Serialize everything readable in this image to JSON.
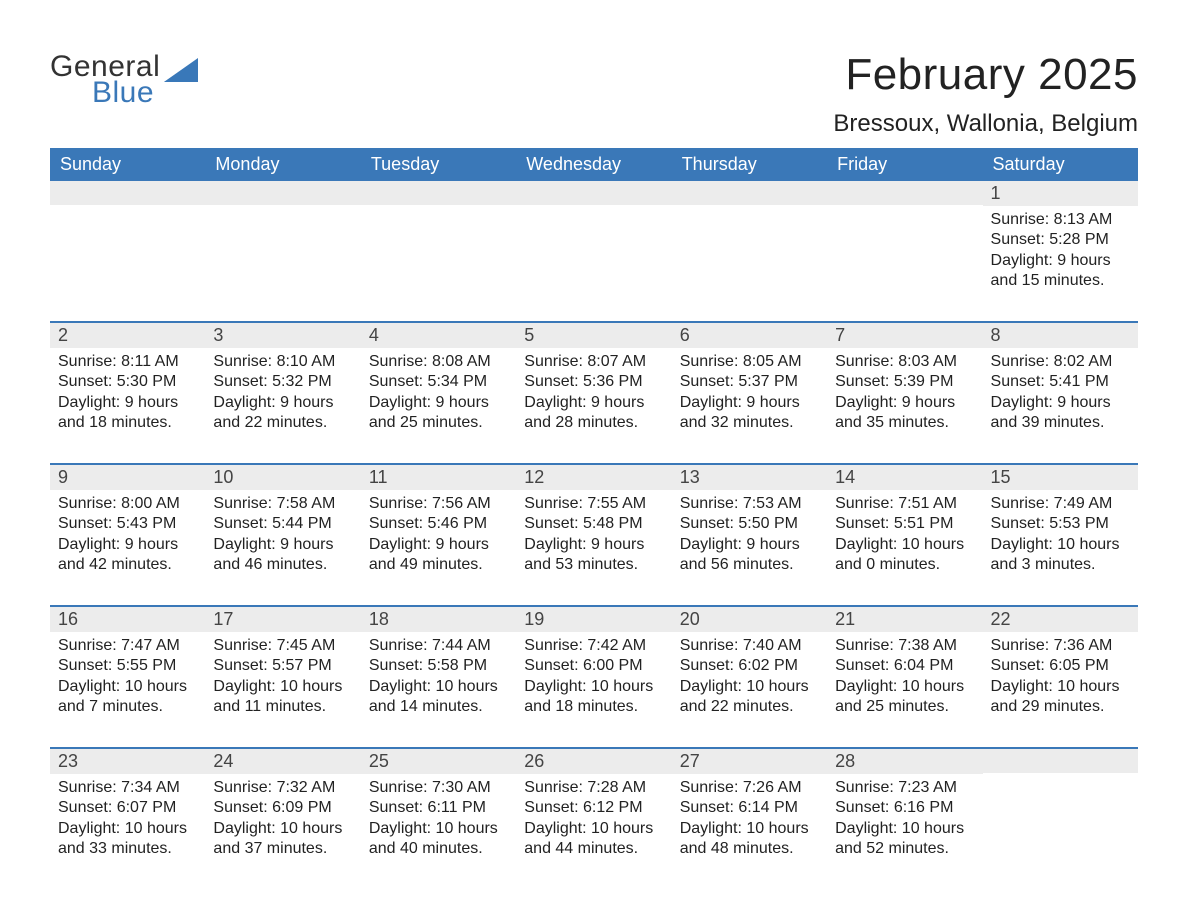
{
  "brand": {
    "text1": "General",
    "text2": "Blue",
    "sail_color": "#3a78b8"
  },
  "title": "February 2025",
  "location": "Bressoux, Wallonia, Belgium",
  "colors": {
    "header_bg": "#3a78b8",
    "header_text": "#ffffff",
    "daynum_bg": "#ececec",
    "daynum_text": "#444444",
    "body_text": "#222222",
    "week_border": "#3a78b8",
    "page_bg": "#ffffff"
  },
  "typography": {
    "title_fontsize": 44,
    "location_fontsize": 24,
    "dow_fontsize": 18,
    "daynum_fontsize": 18,
    "body_fontsize": 16,
    "logo_fontsize": 30
  },
  "layout": {
    "columns": 7,
    "rows": 5,
    "cell_min_height": 126
  },
  "dow": [
    "Sunday",
    "Monday",
    "Tuesday",
    "Wednesday",
    "Thursday",
    "Friday",
    "Saturday"
  ],
  "weeks": [
    [
      {
        "n": "",
        "lines": []
      },
      {
        "n": "",
        "lines": []
      },
      {
        "n": "",
        "lines": []
      },
      {
        "n": "",
        "lines": []
      },
      {
        "n": "",
        "lines": []
      },
      {
        "n": "",
        "lines": []
      },
      {
        "n": "1",
        "lines": [
          "Sunrise: 8:13 AM",
          "Sunset: 5:28 PM",
          "Daylight: 9 hours and 15 minutes."
        ]
      }
    ],
    [
      {
        "n": "2",
        "lines": [
          "Sunrise: 8:11 AM",
          "Sunset: 5:30 PM",
          "Daylight: 9 hours and 18 minutes."
        ]
      },
      {
        "n": "3",
        "lines": [
          "Sunrise: 8:10 AM",
          "Sunset: 5:32 PM",
          "Daylight: 9 hours and 22 minutes."
        ]
      },
      {
        "n": "4",
        "lines": [
          "Sunrise: 8:08 AM",
          "Sunset: 5:34 PM",
          "Daylight: 9 hours and 25 minutes."
        ]
      },
      {
        "n": "5",
        "lines": [
          "Sunrise: 8:07 AM",
          "Sunset: 5:36 PM",
          "Daylight: 9 hours and 28 minutes."
        ]
      },
      {
        "n": "6",
        "lines": [
          "Sunrise: 8:05 AM",
          "Sunset: 5:37 PM",
          "Daylight: 9 hours and 32 minutes."
        ]
      },
      {
        "n": "7",
        "lines": [
          "Sunrise: 8:03 AM",
          "Sunset: 5:39 PM",
          "Daylight: 9 hours and 35 minutes."
        ]
      },
      {
        "n": "8",
        "lines": [
          "Sunrise: 8:02 AM",
          "Sunset: 5:41 PM",
          "Daylight: 9 hours and 39 minutes."
        ]
      }
    ],
    [
      {
        "n": "9",
        "lines": [
          "Sunrise: 8:00 AM",
          "Sunset: 5:43 PM",
          "Daylight: 9 hours and 42 minutes."
        ]
      },
      {
        "n": "10",
        "lines": [
          "Sunrise: 7:58 AM",
          "Sunset: 5:44 PM",
          "Daylight: 9 hours and 46 minutes."
        ]
      },
      {
        "n": "11",
        "lines": [
          "Sunrise: 7:56 AM",
          "Sunset: 5:46 PM",
          "Daylight: 9 hours and 49 minutes."
        ]
      },
      {
        "n": "12",
        "lines": [
          "Sunrise: 7:55 AM",
          "Sunset: 5:48 PM",
          "Daylight: 9 hours and 53 minutes."
        ]
      },
      {
        "n": "13",
        "lines": [
          "Sunrise: 7:53 AM",
          "Sunset: 5:50 PM",
          "Daylight: 9 hours and 56 minutes."
        ]
      },
      {
        "n": "14",
        "lines": [
          "Sunrise: 7:51 AM",
          "Sunset: 5:51 PM",
          "Daylight: 10 hours and 0 minutes."
        ]
      },
      {
        "n": "15",
        "lines": [
          "Sunrise: 7:49 AM",
          "Sunset: 5:53 PM",
          "Daylight: 10 hours and 3 minutes."
        ]
      }
    ],
    [
      {
        "n": "16",
        "lines": [
          "Sunrise: 7:47 AM",
          "Sunset: 5:55 PM",
          "Daylight: 10 hours and 7 minutes."
        ]
      },
      {
        "n": "17",
        "lines": [
          "Sunrise: 7:45 AM",
          "Sunset: 5:57 PM",
          "Daylight: 10 hours and 11 minutes."
        ]
      },
      {
        "n": "18",
        "lines": [
          "Sunrise: 7:44 AM",
          "Sunset: 5:58 PM",
          "Daylight: 10 hours and 14 minutes."
        ]
      },
      {
        "n": "19",
        "lines": [
          "Sunrise: 7:42 AM",
          "Sunset: 6:00 PM",
          "Daylight: 10 hours and 18 minutes."
        ]
      },
      {
        "n": "20",
        "lines": [
          "Sunrise: 7:40 AM",
          "Sunset: 6:02 PM",
          "Daylight: 10 hours and 22 minutes."
        ]
      },
      {
        "n": "21",
        "lines": [
          "Sunrise: 7:38 AM",
          "Sunset: 6:04 PM",
          "Daylight: 10 hours and 25 minutes."
        ]
      },
      {
        "n": "22",
        "lines": [
          "Sunrise: 7:36 AM",
          "Sunset: 6:05 PM",
          "Daylight: 10 hours and 29 minutes."
        ]
      }
    ],
    [
      {
        "n": "23",
        "lines": [
          "Sunrise: 7:34 AM",
          "Sunset: 6:07 PM",
          "Daylight: 10 hours and 33 minutes."
        ]
      },
      {
        "n": "24",
        "lines": [
          "Sunrise: 7:32 AM",
          "Sunset: 6:09 PM",
          "Daylight: 10 hours and 37 minutes."
        ]
      },
      {
        "n": "25",
        "lines": [
          "Sunrise: 7:30 AM",
          "Sunset: 6:11 PM",
          "Daylight: 10 hours and 40 minutes."
        ]
      },
      {
        "n": "26",
        "lines": [
          "Sunrise: 7:28 AM",
          "Sunset: 6:12 PM",
          "Daylight: 10 hours and 44 minutes."
        ]
      },
      {
        "n": "27",
        "lines": [
          "Sunrise: 7:26 AM",
          "Sunset: 6:14 PM",
          "Daylight: 10 hours and 48 minutes."
        ]
      },
      {
        "n": "28",
        "lines": [
          "Sunrise: 7:23 AM",
          "Sunset: 6:16 PM",
          "Daylight: 10 hours and 52 minutes."
        ]
      },
      {
        "n": "",
        "lines": []
      }
    ]
  ]
}
